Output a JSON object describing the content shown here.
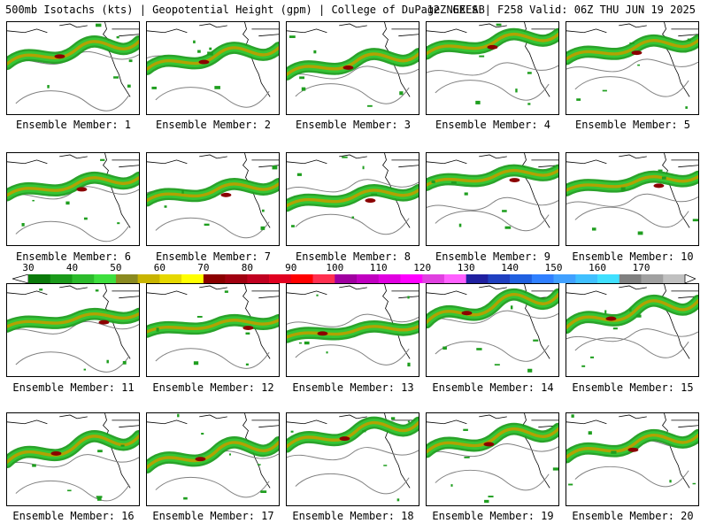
{
  "header": {
    "title_left": "500mb Isotachs (kts) | Geopotential Height (gpm) | College of DuPage NEXLAB",
    "title_right": "12Z GEFS | F258 Valid: 06Z THU JUN 19 2025"
  },
  "panels": [
    {
      "label": "Ensemble Member: 1"
    },
    {
      "label": "Ensemble Member: 2"
    },
    {
      "label": "Ensemble Member: 3"
    },
    {
      "label": "Ensemble Member: 4"
    },
    {
      "label": "Ensemble Member: 5"
    },
    {
      "label": "Ensemble Member: 6"
    },
    {
      "label": "Ensemble Member: 7"
    },
    {
      "label": "Ensemble Member: 8"
    },
    {
      "label": "Ensemble Member: 9"
    },
    {
      "label": "Ensemble Member: 10"
    },
    {
      "label": "Ensemble Member: 11"
    },
    {
      "label": "Ensemble Member: 12"
    },
    {
      "label": "Ensemble Member: 13"
    },
    {
      "label": "Ensemble Member: 14"
    },
    {
      "label": "Ensemble Member: 15"
    },
    {
      "label": "Ensemble Member: 16"
    },
    {
      "label": "Ensemble Member: 17"
    },
    {
      "label": "Ensemble Member: 18"
    },
    {
      "label": "Ensemble Member: 19"
    },
    {
      "label": "Ensemble Member: 20"
    }
  ],
  "colorbar": {
    "labels": [
      "30",
      "40",
      "50",
      "60",
      "70",
      "80",
      "90",
      "100",
      "110",
      "120",
      "130",
      "140",
      "150",
      "160",
      "170"
    ],
    "colors": [
      "#0a7a0a",
      "#1a9a1a",
      "#2cbb2c",
      "#3ddf3d",
      "#8a8a20",
      "#c8b400",
      "#e6d800",
      "#ffff00",
      "#8b0000",
      "#a00010",
      "#c00020",
      "#e00020",
      "#ff0000",
      "#ff3050",
      "#a000a0",
      "#c000c0",
      "#e000e0",
      "#ff00ff",
      "#e040e0",
      "#ff60ff",
      "#2020a0",
      "#2040c0",
      "#2060e0",
      "#3080ff",
      "#40a0ff",
      "#40c0ff",
      "#40e0ff",
      "#808080",
      "#a0a0a0",
      "#c0c0c0"
    ]
  },
  "map_colors": {
    "jet_outer": "#1f9e1f",
    "jet_inner": "#36c836",
    "jet_core": "#b8a000",
    "jet_max": "#8b0000",
    "height_contour": "#808080",
    "coastline": "#000000"
  }
}
